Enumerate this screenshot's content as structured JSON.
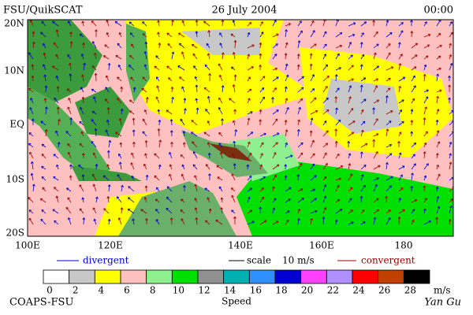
{
  "header": {
    "left": "FSU/QuikSCAT",
    "date": "26 July 2004",
    "time": "00:00"
  },
  "latitude_labels": [
    "20N",
    "10N",
    "EQ",
    "10S",
    "20S"
  ],
  "longitude_labels": [
    "100E",
    "120E",
    "140E",
    "160E",
    "180"
  ],
  "legend": {
    "divergent": "divergent",
    "scale": "scale",
    "scale_value": "10 m/s",
    "convergent": "convergent"
  },
  "colorbar": {
    "labels": [
      0,
      2,
      4,
      6,
      8,
      10,
      12,
      14,
      16,
      18,
      20,
      22,
      24,
      26,
      28
    ],
    "unit": "m/s",
    "colors": [
      "#ffffff",
      "#c8c8c8",
      "#ffff00",
      "#ffc0c0",
      "#90f090",
      "#00e000",
      "#909090",
      "#00b0b0",
      "#3090ff",
      "#0000d0",
      "#ff40ff",
      "#b090ff",
      "#ff0000",
      "#c04000",
      "#000000"
    ],
    "title": "Speed"
  },
  "footer": {
    "left": "COAPS-FSU",
    "right": "Yan Gu"
  }
}
